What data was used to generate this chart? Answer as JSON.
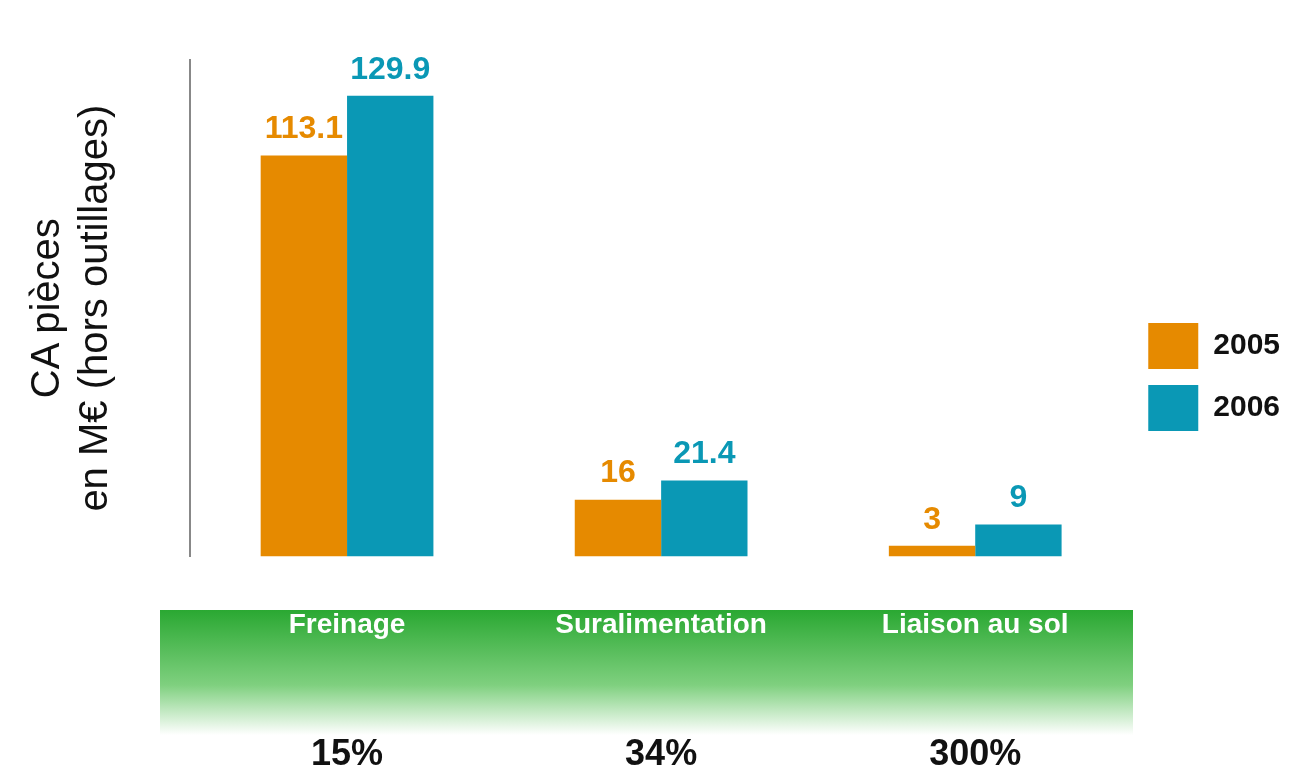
{
  "chart_data": {
    "type": "bar",
    "ylabel": "CA pièces\nen M€ (hors outillages)",
    "categories": [
      "Freinage",
      "Suralimentation",
      "Liaison au sol"
    ],
    "series": [
      {
        "name": "2005",
        "color": "#e68a00",
        "values": [
          113.1,
          16,
          3
        ]
      },
      {
        "name": "2006",
        "color": "#0a98b5",
        "values": [
          129.9,
          21.4,
          9
        ]
      }
    ],
    "data_labels": true,
    "legend": "right",
    "grid": false,
    "annotations": [
      "15%",
      "34%",
      "300%"
    ]
  }
}
